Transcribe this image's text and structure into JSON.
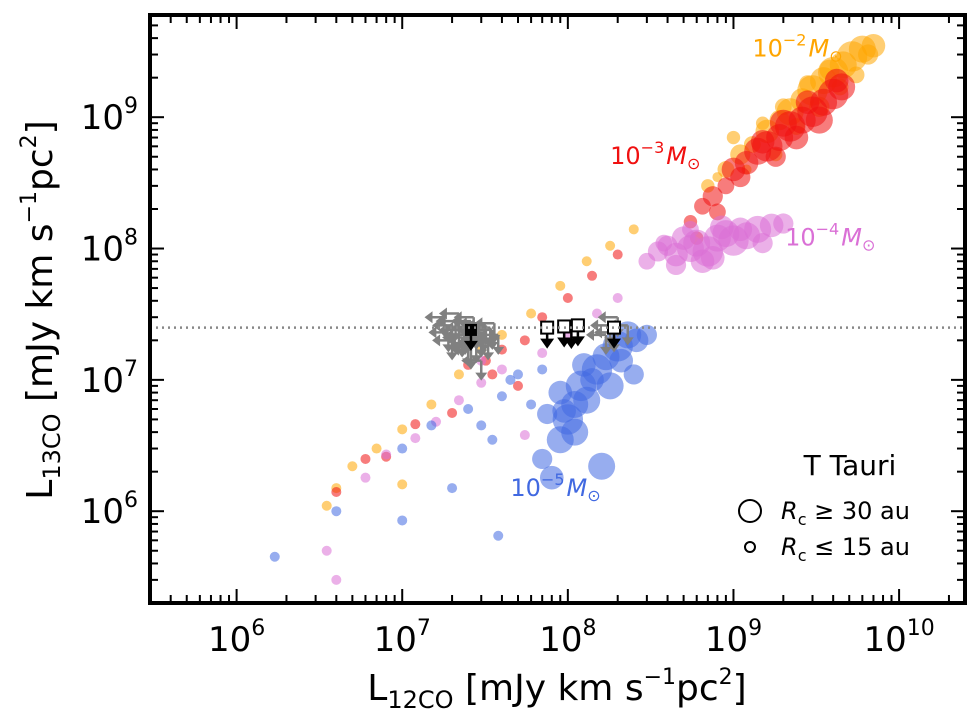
{
  "chart_data": {
    "type": "scatter",
    "x_scale": "log",
    "y_scale": "log",
    "xlim": [
      300000,
      25000000000
    ],
    "ylim": [
      200000,
      6000000000
    ],
    "xlabel_main": "L",
    "xlabel_sub": "12CO",
    "xlabel_units": " [mJy km s",
    "xlabel_exp": "−1",
    "xlabel_units2": "pc",
    "xlabel_exp2": "2",
    "xlabel_close": "]",
    "ylabel_main": "L",
    "ylabel_sub": "13CO",
    "ylabel_units": " [mJy km s",
    "ylabel_exp": "−1",
    "ylabel_units2": "pc",
    "ylabel_exp2": "2",
    "ylabel_close": "]",
    "x_ticks": [
      {
        "value": 1000000,
        "base": "10",
        "exp": "6"
      },
      {
        "value": 10000000,
        "base": "10",
        "exp": "7"
      },
      {
        "value": 100000000,
        "base": "10",
        "exp": "8"
      },
      {
        "value": 1000000000,
        "base": "10",
        "exp": "9"
      },
      {
        "value": 10000000000,
        "base": "10",
        "exp": "10"
      }
    ],
    "y_ticks": [
      {
        "value": 1000000,
        "base": "10",
        "exp": "6"
      },
      {
        "value": 10000000,
        "base": "10",
        "exp": "7"
      },
      {
        "value": 100000000,
        "base": "10",
        "exp": "8"
      },
      {
        "value": 1000000000,
        "base": "10",
        "exp": "9"
      }
    ],
    "hline": {
      "y": 25000000,
      "style": "dotted",
      "color": "#888888"
    },
    "series": [
      {
        "color": "#ffa500",
        "label_base": "10",
        "label_exp": "−2",
        "label_unit": "M",
        "label_sym": "⊙",
        "label_at": [
          1300000000,
          2900000000
        ],
        "points": [
          [
            3500000,
            1100000,
            0.4
          ],
          [
            4000000,
            1500000,
            0.4
          ],
          [
            5000000,
            2200000,
            0.4
          ],
          [
            7000000,
            3000000,
            0.4
          ],
          [
            10000000,
            4200000,
            0.4
          ],
          [
            15000000,
            6500000,
            0.4
          ],
          [
            22000000,
            11000000,
            0.4
          ],
          [
            30000000,
            17000000,
            0.4
          ],
          [
            40000000,
            22000000,
            0.4
          ],
          [
            60000000,
            32000000,
            0.4
          ],
          [
            90000000,
            52000000,
            0.4
          ],
          [
            130000000,
            80000000,
            0.4
          ],
          [
            180000000,
            105000000,
            0.4
          ],
          [
            250000000,
            140000000,
            0.4
          ],
          [
            10000000,
            1600000,
            0.4
          ],
          [
            700000000,
            300000000,
            0.5
          ],
          [
            900000000,
            400000000,
            0.6
          ],
          [
            1100000000,
            520000000,
            0.7
          ],
          [
            1300000000,
            620000000,
            0.6
          ],
          [
            1600000000,
            780000000,
            0.8
          ],
          [
            1900000000,
            950000000,
            0.7
          ],
          [
            2200000000,
            1100000000,
            0.9
          ],
          [
            2600000000,
            1350000000,
            0.8
          ],
          [
            3000000000,
            1600000000,
            1.0
          ],
          [
            3500000000,
            1900000000,
            0.9
          ],
          [
            4000000000,
            2200000000,
            1.0
          ],
          [
            4600000000,
            2500000000,
            0.9
          ],
          [
            5200000000,
            2900000000,
            1.0
          ],
          [
            6000000000,
            3300000000,
            0.9
          ],
          [
            7000000000,
            3500000000,
            0.8
          ],
          [
            2000000000,
            1200000000,
            0.6
          ],
          [
            2800000000,
            1800000000,
            0.6
          ],
          [
            3800000000,
            2300000000,
            0.7
          ],
          [
            1500000000,
            900000000,
            0.5
          ],
          [
            1000000000,
            700000000,
            0.5
          ],
          [
            2400000000,
            850000000,
            0.6
          ],
          [
            3300000000,
            1200000000,
            0.7
          ],
          [
            4400000000,
            1700000000,
            0.6
          ],
          [
            1800000000,
            520000000,
            0.5
          ],
          [
            5500000000,
            2100000000,
            0.6
          ],
          [
            800000000,
            350000000,
            0.4
          ],
          [
            1200000000,
            400000000,
            0.4
          ],
          [
            6500000000,
            3000000000,
            0.7
          ]
        ]
      },
      {
        "color": "#f01010",
        "label_base": "10",
        "label_exp": "−3",
        "label_unit": "M",
        "label_sym": "⊙",
        "label_at": [
          180000000,
          440000000
        ],
        "points": [
          [
            4000000,
            1400000,
            0.4
          ],
          [
            6000000,
            2500000,
            0.4
          ],
          [
            8000000,
            2600000,
            0.4
          ],
          [
            12000000,
            4600000,
            0.4
          ],
          [
            20000000,
            5600000,
            0.4
          ],
          [
            25000000,
            13000000,
            0.4
          ],
          [
            32000000,
            14000000,
            0.4
          ],
          [
            40000000,
            17000000,
            0.4
          ],
          [
            55000000,
            20000000,
            0.4
          ],
          [
            70000000,
            30000000,
            0.4
          ],
          [
            100000000,
            42000000,
            0.4
          ],
          [
            140000000,
            62000000,
            0.4
          ],
          [
            200000000,
            90000000,
            0.4
          ],
          [
            35000000,
            11000000,
            0.4
          ],
          [
            50000000,
            9000000,
            0.4
          ],
          [
            550000000,
            160000000,
            0.5
          ],
          [
            650000000,
            210000000,
            0.6
          ],
          [
            750000000,
            250000000,
            0.7
          ],
          [
            900000000,
            300000000,
            0.6
          ],
          [
            1000000000,
            400000000,
            0.8
          ],
          [
            1200000000,
            450000000,
            0.8
          ],
          [
            1400000000,
            550000000,
            0.9
          ],
          [
            1600000000,
            600000000,
            1.0
          ],
          [
            1900000000,
            700000000,
            0.9
          ],
          [
            2200000000,
            850000000,
            1.0
          ],
          [
            2600000000,
            950000000,
            0.9
          ],
          [
            3000000000,
            1100000000,
            1.0
          ],
          [
            3500000000,
            1300000000,
            0.9
          ],
          [
            4000000000,
            1500000000,
            1.0
          ],
          [
            4500000000,
            1700000000,
            0.9
          ],
          [
            1100000000,
            350000000,
            0.7
          ],
          [
            1500000000,
            650000000,
            0.8
          ],
          [
            1800000000,
            500000000,
            0.7
          ],
          [
            2400000000,
            700000000,
            0.8
          ],
          [
            2800000000,
            1300000000,
            0.8
          ],
          [
            3300000000,
            950000000,
            0.9
          ],
          [
            600000000,
            120000000,
            0.5
          ],
          [
            800000000,
            190000000,
            0.6
          ],
          [
            4200000000,
            1900000000,
            0.8
          ],
          [
            2000000000,
            900000000,
            0.9
          ]
        ]
      },
      {
        "color": "#da70d6",
        "label_base": "10",
        "label_exp": "−4",
        "label_unit": "M",
        "label_sym": "⊙",
        "label_at": [
          2050000000,
          105000000
        ],
        "points": [
          [
            3500000,
            500000,
            0.4
          ],
          [
            4000000,
            300000,
            0.4
          ],
          [
            6000000,
            1800000,
            0.4
          ],
          [
            8000000,
            2700000,
            0.4
          ],
          [
            12000000,
            3600000,
            0.4
          ],
          [
            16000000,
            4800000,
            0.4
          ],
          [
            22000000,
            7000000,
            0.4
          ],
          [
            30000000,
            9500000,
            0.4
          ],
          [
            40000000,
            12000000,
            0.4
          ],
          [
            55000000,
            3800000,
            0.4
          ],
          [
            70000000,
            16000000,
            0.4
          ],
          [
            100000000,
            22000000,
            0.4
          ],
          [
            150000000,
            32000000,
            0.4
          ],
          [
            200000000,
            42000000,
            0.4
          ],
          [
            30000000,
            14000000,
            0.4
          ],
          [
            300000000,
            80000000,
            0.6
          ],
          [
            350000000,
            95000000,
            0.7
          ],
          [
            400000000,
            105000000,
            0.7
          ],
          [
            450000000,
            90000000,
            0.8
          ],
          [
            500000000,
            120000000,
            0.8
          ],
          [
            550000000,
            100000000,
            0.9
          ],
          [
            600000000,
            110000000,
            0.9
          ],
          [
            700000000,
            95000000,
            1.0
          ],
          [
            800000000,
            120000000,
            0.9
          ],
          [
            900000000,
            130000000,
            0.9
          ],
          [
            1000000000,
            115000000,
            1.0
          ],
          [
            1200000000,
            125000000,
            0.9
          ],
          [
            1400000000,
            140000000,
            0.9
          ],
          [
            1700000000,
            150000000,
            0.8
          ],
          [
            2000000000,
            155000000,
            0.7
          ],
          [
            450000000,
            75000000,
            0.7
          ],
          [
            650000000,
            80000000,
            0.8
          ],
          [
            850000000,
            145000000,
            0.8
          ],
          [
            1100000000,
            140000000,
            0.8
          ],
          [
            550000000,
            140000000,
            0.6
          ],
          [
            750000000,
            85000000,
            0.8
          ],
          [
            380000000,
            110000000,
            0.6
          ],
          [
            1500000000,
            110000000,
            0.7
          ]
        ]
      },
      {
        "color": "#4169e1",
        "label_base": "10",
        "label_exp": "−5",
        "label_unit": "M",
        "label_sym": "⊙",
        "label_at": [
          45000000,
          1300000
        ],
        "points": [
          [
            1700000,
            450000,
            0.4
          ],
          [
            4000000,
            1000000,
            0.4
          ],
          [
            10000000,
            850000,
            0.4
          ],
          [
            20000000,
            1500000,
            0.4
          ],
          [
            38000000,
            650000,
            0.4
          ],
          [
            10000000,
            3000000,
            0.4
          ],
          [
            15000000,
            4500000,
            0.4
          ],
          [
            25000000,
            6000000,
            0.4
          ],
          [
            30000000,
            4500000,
            0.4
          ],
          [
            40000000,
            7500000,
            0.4
          ],
          [
            50000000,
            11000000,
            0.4
          ],
          [
            60000000,
            6500000,
            0.4
          ],
          [
            45000000,
            10000000,
            0.4
          ],
          [
            70000000,
            12000000,
            0.4
          ],
          [
            35000000,
            3500000,
            0.4
          ],
          [
            70000000,
            2500000,
            0.7
          ],
          [
            80000000,
            1800000,
            0.8
          ],
          [
            90000000,
            3500000,
            0.9
          ],
          [
            100000000,
            5000000,
            1.0
          ],
          [
            110000000,
            6500000,
            0.9
          ],
          [
            120000000,
            9000000,
            1.0
          ],
          [
            130000000,
            7000000,
            0.9
          ],
          [
            150000000,
            12000000,
            1.0
          ],
          [
            170000000,
            15000000,
            0.9
          ],
          [
            200000000,
            18000000,
            1.0
          ],
          [
            230000000,
            22000000,
            0.9
          ],
          [
            260000000,
            20000000,
            0.8
          ],
          [
            300000000,
            22000000,
            0.7
          ],
          [
            90000000,
            8000000,
            0.8
          ],
          [
            110000000,
            4000000,
            0.9
          ],
          [
            140000000,
            10000000,
            0.8
          ],
          [
            180000000,
            9000000,
            0.9
          ],
          [
            210000000,
            14000000,
            0.8
          ],
          [
            160000000,
            2200000,
            0.9
          ],
          [
            95000000,
            5800000,
            0.8
          ],
          [
            250000000,
            11000000,
            0.7
          ],
          [
            125000000,
            13000000,
            0.8
          ],
          [
            75000000,
            5500000,
            0.7
          ]
        ]
      }
    ],
    "upper_limits_gray": [
      [
        18000000,
        30000000
      ],
      [
        20000000,
        26000000
      ],
      [
        22000000,
        24000000
      ],
      [
        24000000,
        22000000
      ],
      [
        26000000,
        28000000
      ],
      [
        28000000,
        24000000
      ],
      [
        30000000,
        21000000
      ],
      [
        32000000,
        26000000
      ],
      [
        35000000,
        24000000
      ],
      [
        38000000,
        22000000
      ],
      [
        30000000,
        14000000
      ],
      [
        25000000,
        18000000
      ],
      [
        22000000,
        32000000
      ],
      [
        27000000,
        30000000
      ],
      [
        33000000,
        20000000
      ],
      [
        20000000,
        20000000
      ],
      [
        24000000,
        25000000
      ],
      [
        29000000,
        27000000
      ],
      [
        19000000,
        23000000
      ],
      [
        36000000,
        27000000
      ],
      [
        26000000,
        17000000
      ],
      [
        31000000,
        23000000
      ],
      [
        23000000,
        21000000
      ],
      [
        34000000,
        25000000
      ],
      [
        28000000,
        19000000
      ],
      [
        21000000,
        28000000
      ],
      [
        180000000,
        26000000
      ],
      [
        190000000,
        23000000
      ],
      [
        230000000,
        26000000
      ],
      [
        200000000,
        30000000
      ],
      [
        170000000,
        22000000
      ]
    ],
    "upper_limit_solid": [
      [
        26000000,
        24000000
      ],
      [
        75000000,
        25000000
      ],
      [
        95000000,
        25500000
      ],
      [
        105000000,
        24800000
      ],
      [
        115000000,
        26000000
      ],
      [
        190000000,
        25000000
      ]
    ],
    "upper_limit_open": [
      [
        75000000,
        25000000
      ],
      [
        95000000,
        25500000
      ],
      [
        115000000,
        26000000
      ],
      [
        190000000,
        25000000
      ]
    ],
    "legend": {
      "title": "T Tauri",
      "entries": [
        {
          "text_sym": "R",
          "text_sub": "c",
          "text_rel": " ≥ 30 au",
          "size": 1.0
        },
        {
          "text_sym": "R",
          "text_sub": "c",
          "text_rel": " ≤ 15 au",
          "size": 0.4
        }
      ]
    }
  }
}
